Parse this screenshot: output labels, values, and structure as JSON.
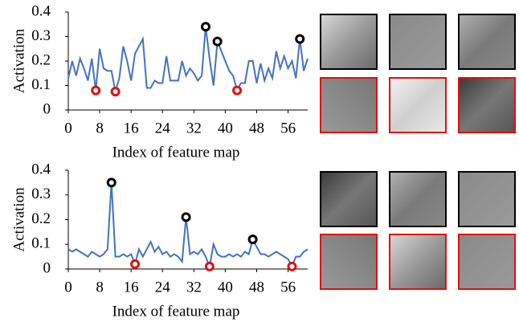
{
  "chart_data": [
    {
      "type": "line",
      "xlabel": "Index of feature map",
      "ylabel": "Activation",
      "color": "#4472c4",
      "high_color": "#000000",
      "low_color": "#e01010",
      "high_indices": [
        35,
        38,
        59
      ],
      "low_indices": [
        7,
        12,
        43
      ],
      "xlim": [
        0,
        61
      ],
      "xticks": [
        0,
        8,
        16,
        24,
        32,
        40,
        48,
        56
      ],
      "ylim": [
        0,
        0.4
      ],
      "yticks": [
        0,
        0.1,
        0.2,
        0.3,
        0.4
      ],
      "values": [
        0.13,
        0.2,
        0.14,
        0.21,
        0.17,
        0.12,
        0.21,
        0.08,
        0.25,
        0.17,
        0.16,
        0.16,
        0.075,
        0.13,
        0.26,
        0.2,
        0.12,
        0.23,
        0.26,
        0.29,
        0.09,
        0.09,
        0.12,
        0.11,
        0.11,
        0.22,
        0.12,
        0.12,
        0.12,
        0.2,
        0.14,
        0.17,
        0.15,
        0.12,
        0.14,
        0.34,
        0.21,
        0.1,
        0.28,
        0.24,
        0.2,
        0.16,
        0.14,
        0.08,
        0.11,
        0.11,
        0.2,
        0.2,
        0.11,
        0.19,
        0.12,
        0.17,
        0.13,
        0.24,
        0.17,
        0.22,
        0.17,
        0.2,
        0.13,
        0.29,
        0.16,
        0.21
      ]
    },
    {
      "type": "line",
      "xlabel": "Index of feature map",
      "ylabel": "Activation",
      "color": "#4472c4",
      "high_color": "#000000",
      "low_color": "#e01010",
      "high_indices": [
        11,
        30,
        47
      ],
      "low_indices": [
        17,
        36,
        57
      ],
      "xlim": [
        0,
        61
      ],
      "xticks": [
        0,
        8,
        16,
        24,
        32,
        40,
        48,
        56
      ],
      "ylim": [
        0,
        0.4
      ],
      "yticks": [
        0,
        0.1,
        0.2,
        0.3,
        0.4
      ],
      "values": [
        0.08,
        0.07,
        0.08,
        0.07,
        0.06,
        0.05,
        0.07,
        0.06,
        0.05,
        0.06,
        0.08,
        0.35,
        0.05,
        0.05,
        0.06,
        0.05,
        0.06,
        0.02,
        0.08,
        0.05,
        0.08,
        0.11,
        0.07,
        0.09,
        0.06,
        0.07,
        0.05,
        0.06,
        0.05,
        0.03,
        0.21,
        0.06,
        0.07,
        0.06,
        0.08,
        0.05,
        0.01,
        0.1,
        0.06,
        0.05,
        0.05,
        0.06,
        0.05,
        0.06,
        0.05,
        0.07,
        0.06,
        0.12,
        0.09,
        0.06,
        0.06,
        0.05,
        0.06,
        0.07,
        0.06,
        0.05,
        0.04,
        0.01,
        0.05,
        0.05,
        0.07,
        0.08
      ]
    }
  ]
}
